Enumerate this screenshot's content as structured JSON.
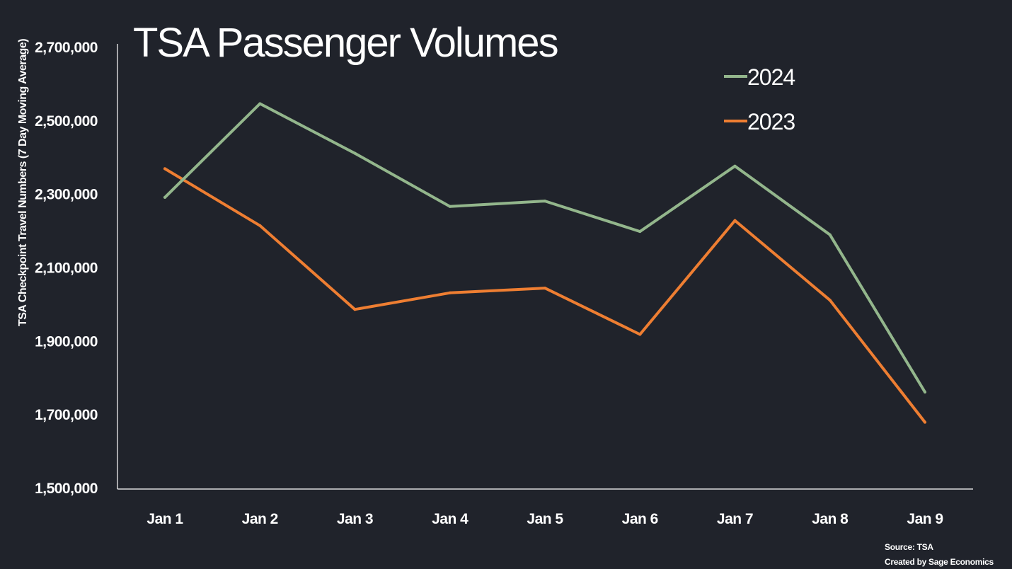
{
  "chart_data": {
    "type": "line",
    "title": "TSA Passenger Volumes",
    "ylabel": "TSA Checkpoint Travel Numbers (7 Day Moving Average)",
    "xlabel": "",
    "categories": [
      "Jan 1",
      "Jan 2",
      "Jan 3",
      "Jan 4",
      "Jan 5",
      "Jan 6",
      "Jan 7",
      "Jan 8",
      "Jan 9"
    ],
    "ylim": [
      1500000,
      2700000
    ],
    "yticks": [
      1500000,
      1700000,
      1900000,
      2100000,
      2300000,
      2500000,
      2700000
    ],
    "ytick_labels": [
      "1,500,000",
      "1,700,000",
      "1,900,000",
      "2,100,000",
      "2,300,000",
      "2,500,000",
      "2,700,000"
    ],
    "grid": false,
    "legend_position": "top-right",
    "series": [
      {
        "name": "2024",
        "color": "#93b68c",
        "values": [
          2290000,
          2545000,
          2410000,
          2265000,
          2280000,
          2197000,
          2375000,
          2188000,
          1760000
        ]
      },
      {
        "name": "2023",
        "color": "#ee7e32",
        "values": [
          2368000,
          2213000,
          1985000,
          2030000,
          2043000,
          1917000,
          2227000,
          2010000,
          1678000
        ]
      }
    ],
    "source": {
      "line1": "Source: TSA",
      "line2": "Created by Sage Economics"
    }
  }
}
